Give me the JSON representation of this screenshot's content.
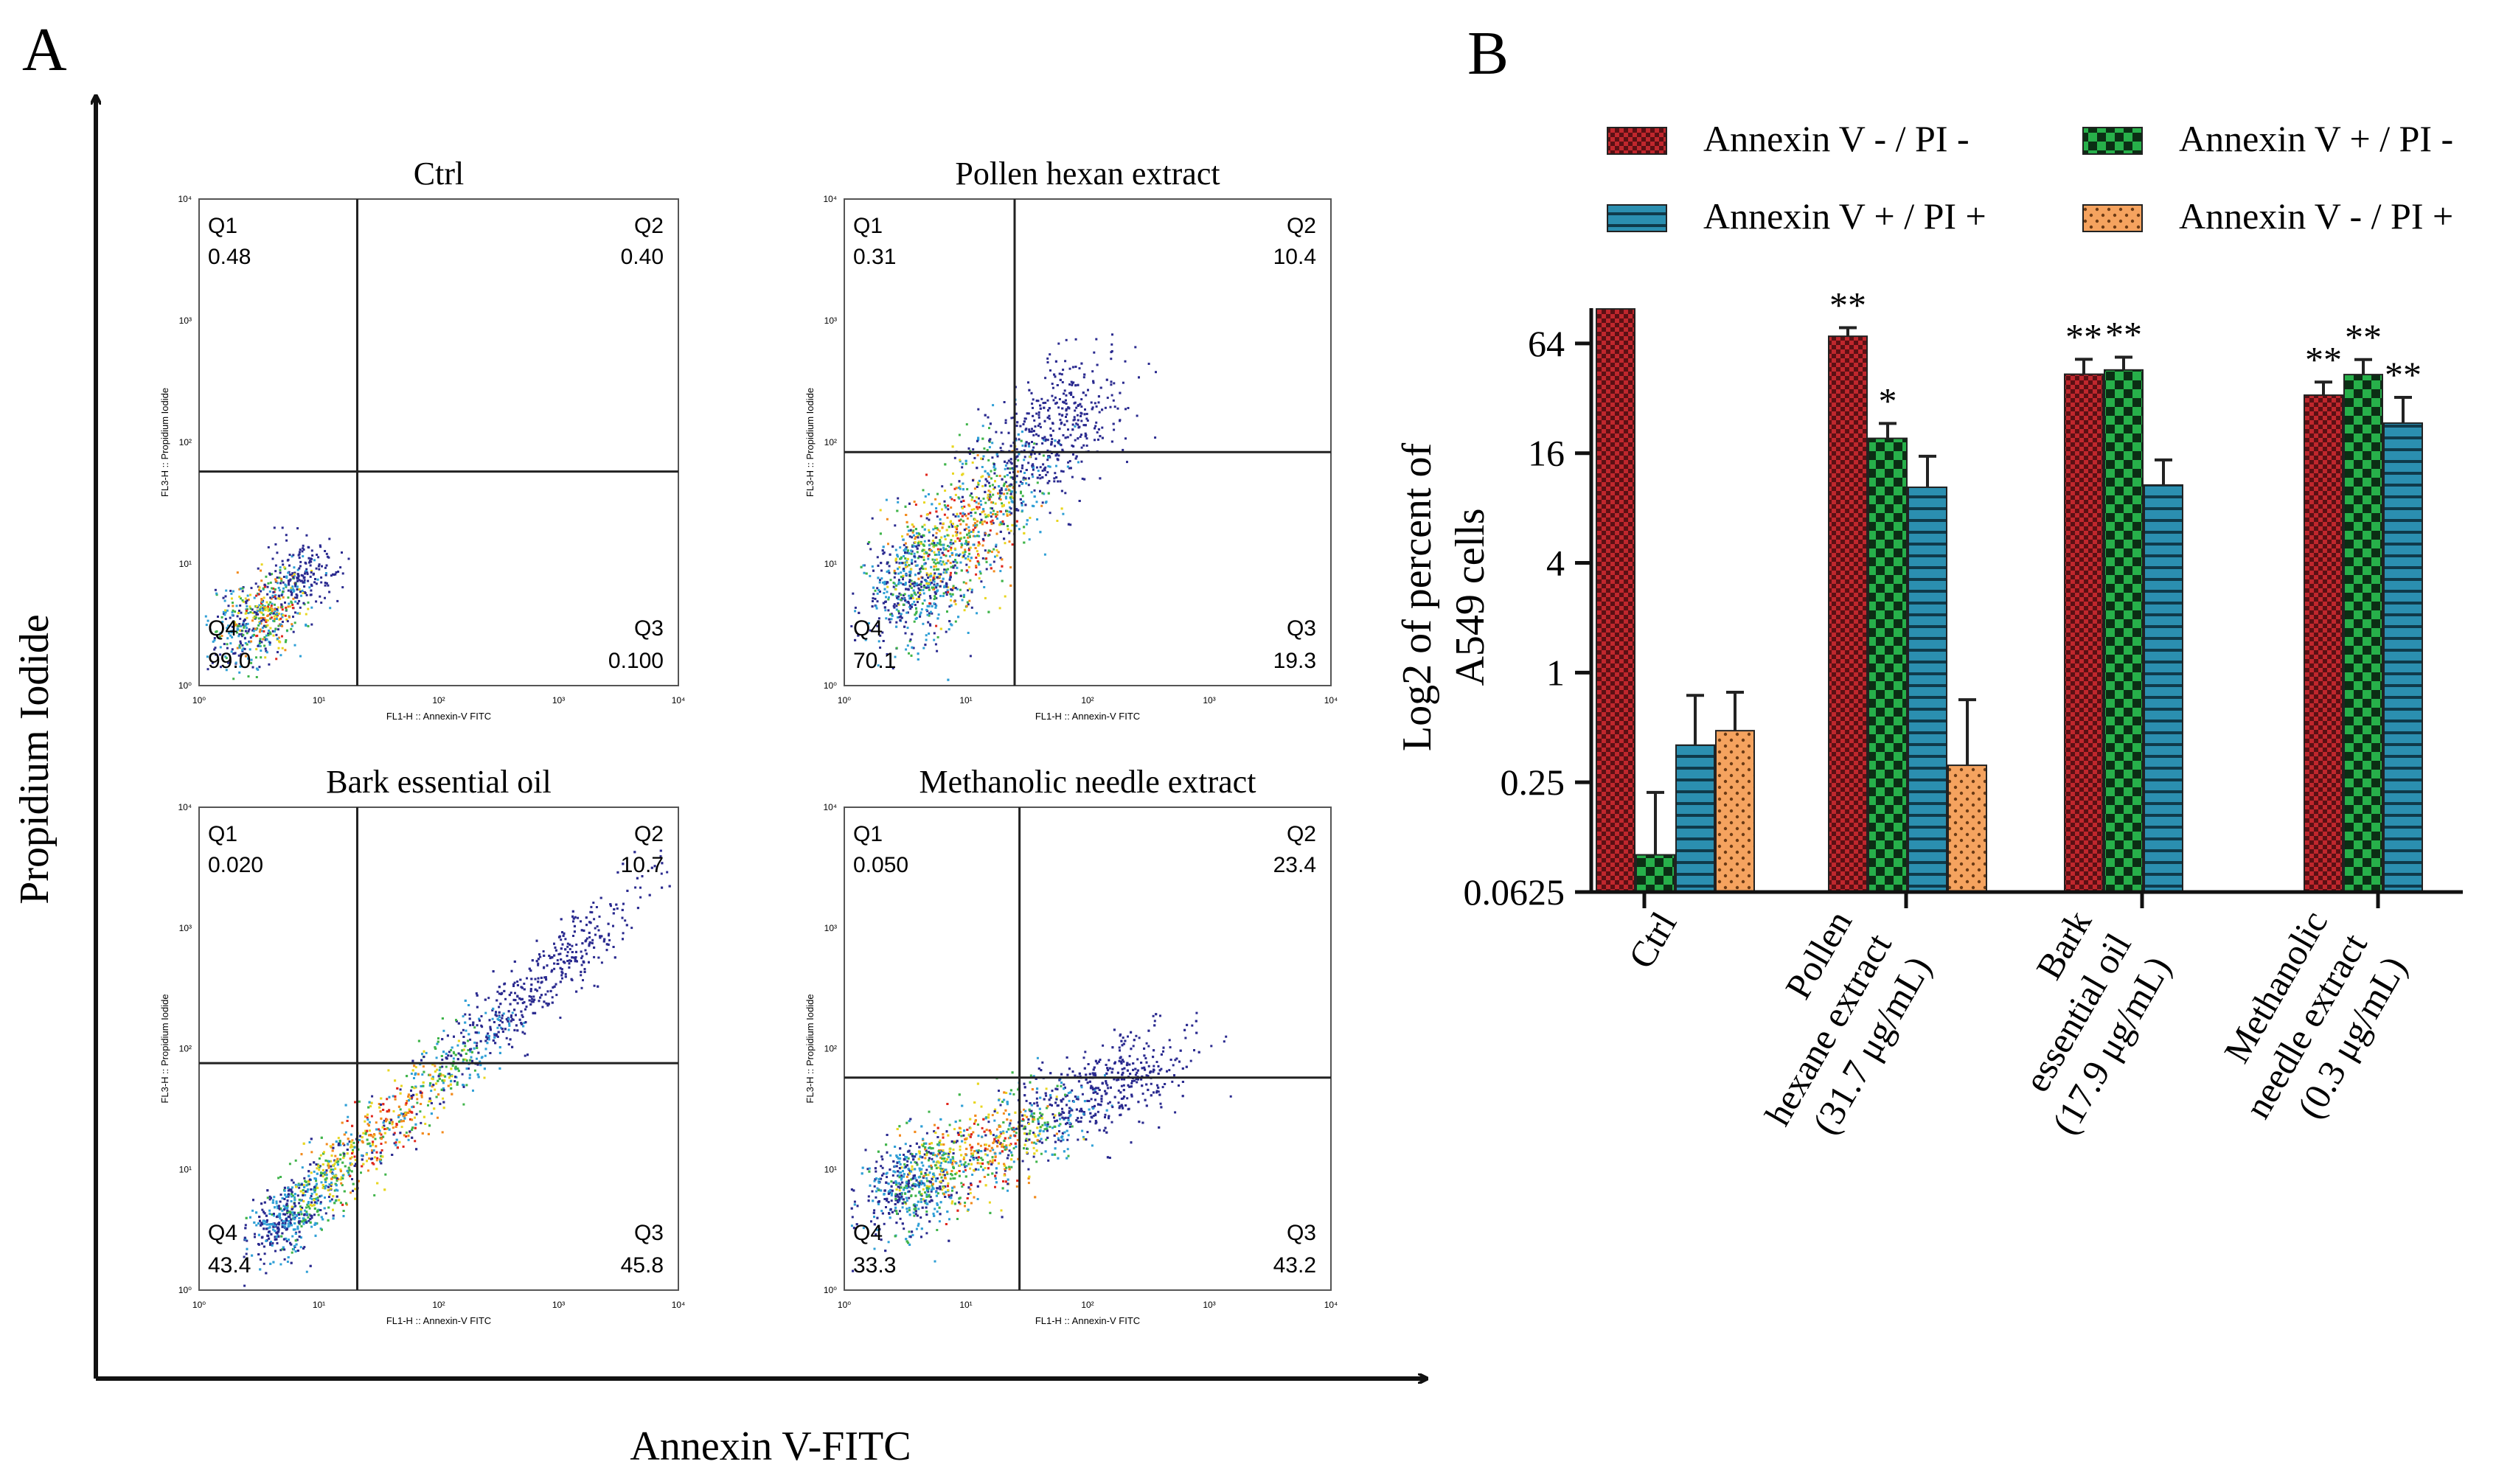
{
  "panel_a": {
    "letter": "A",
    "y_axis_label": "Propidium Iodide",
    "x_axis_label": "Annexin V-FITC",
    "plot_x_label": "FL1-H :: Annexin-V FITC",
    "plot_y_label": "FL3-H :: Propidium Iodide",
    "log_ticks": [
      "10⁰",
      "10¹",
      "10²",
      "10³",
      "10⁴"
    ],
    "plots": [
      {
        "title": "Ctrl",
        "q1": "Q1",
        "q1_value": "0.48",
        "q2": "Q2",
        "q2_value": "0.40",
        "q3": "Q3",
        "q3_value": "0.100",
        "q4": "Q4",
        "q4_value": "99.0"
      },
      {
        "title": "Pollen hexan extract",
        "q1": "Q1",
        "q1_value": "0.31",
        "q2": "Q2",
        "q2_value": "10.4",
        "q3": "Q3",
        "q3_value": "19.3",
        "q4": "Q4",
        "q4_value": "70.1"
      },
      {
        "title": "Bark essential oil",
        "q1": "Q1",
        "q1_value": "0.020",
        "q2": "Q2",
        "q2_value": "10.7",
        "q3": "Q3",
        "q3_value": "45.8",
        "q4": "Q4",
        "q4_value": "43.4"
      },
      {
        "title": "Methanolic needle extract",
        "q1": "Q1",
        "q1_value": "0.050",
        "q2": "Q2",
        "q2_value": "23.4",
        "q3": "Q3",
        "q3_value": "43.2",
        "q4": "Q4",
        "q4_value": "33.3"
      }
    ]
  },
  "panel_b": {
    "letter": "B"
  },
  "colors": {
    "live": "#c0272d",
    "early": "#1b9e3e",
    "late": "#2b8fb0",
    "necrotic": "#f5a35f",
    "axis": "#111111"
  },
  "chart_data": {
    "type": "bar",
    "title": "",
    "ylabel": "Log2 of percent of A549 cells",
    "xlabel": "",
    "yscale": "log2",
    "ylim": [
      0.0625,
      100
    ],
    "yticks": [
      "0.0625",
      "0.25",
      "1",
      "4",
      "16",
      "64"
    ],
    "categories": [
      [
        "Ctrl"
      ],
      [
        "Pollen",
        "hexane extract",
        "(31.7 μg/mL)"
      ],
      [
        "Bark",
        "essential oil",
        "(17.9 μg/mL)"
      ],
      [
        "Methanolic",
        "needle extract",
        "(0.3 μg/mL)"
      ]
    ],
    "series": [
      {
        "name": "Annexin V - / PI -",
        "pattern": "checker",
        "values": [
          99,
          70.1,
          43.4,
          33.3
        ],
        "errors": [
          0,
          8,
          9,
          6
        ],
        "stars": [
          "",
          "**",
          "**",
          "**"
        ]
      },
      {
        "name": "Annexin V + / PI -",
        "pattern": "check-bold",
        "values": [
          0.1,
          19.3,
          45.8,
          43.2
        ],
        "errors": [
          0.12,
          4,
          8,
          9
        ],
        "stars": [
          "",
          "*",
          "**",
          "**"
        ]
      },
      {
        "name": "Annexin V + / PI +",
        "pattern": "hlines",
        "values": [
          0.4,
          10.4,
          10.7,
          23.4
        ],
        "errors": [
          0.35,
          5,
          4,
          9
        ],
        "stars": [
          "",
          "",
          "",
          "**"
        ]
      },
      {
        "name": "Annexin V - / PI +",
        "pattern": "dots",
        "values": [
          0.48,
          0.31,
          null,
          null
        ],
        "errors": [
          0.3,
          0.4,
          null,
          null
        ],
        "stars": [
          "",
          "",
          "",
          ""
        ]
      }
    ],
    "legend_position": "top"
  }
}
